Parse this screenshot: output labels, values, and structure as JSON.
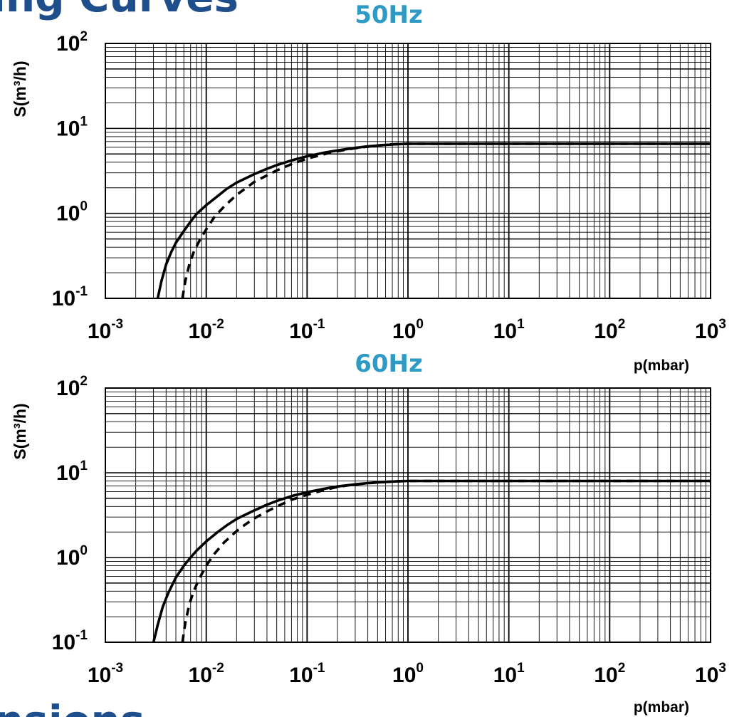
{
  "page": {
    "top_heading_fragment": "ing Curves",
    "bottom_heading_fragment": "nsions",
    "heading_color": "#1f4e8c",
    "freq_label_color": "#2e9bc6"
  },
  "chart_data": [
    {
      "type": "line",
      "title": "50Hz",
      "xlabel": "p(mbar)",
      "ylabel": "S(m³/h)",
      "xscale": "log",
      "yscale": "log",
      "xlim": [
        0.001,
        1000
      ],
      "ylim": [
        0.1,
        100
      ],
      "xticks": [
        {
          "b": "10",
          "e": "-3"
        },
        {
          "b": "10",
          "e": "-2"
        },
        {
          "b": "10",
          "e": "-1"
        },
        {
          "b": "10",
          "e": "0"
        },
        {
          "b": "10",
          "e": "1"
        },
        {
          "b": "10",
          "e": "2"
        },
        {
          "b": "10",
          "e": "3"
        }
      ],
      "yticks": [
        {
          "b": "10",
          "e": "-1"
        },
        {
          "b": "10",
          "e": "0"
        },
        {
          "b": "10",
          "e": "1"
        },
        {
          "b": "10",
          "e": "2"
        }
      ],
      "grid": true,
      "series": [
        {
          "style": "solid",
          "x": [
            0.0033,
            0.0036,
            0.004,
            0.0045,
            0.005,
            0.006,
            0.007,
            0.008,
            0.01,
            0.013,
            0.016,
            0.02,
            0.03,
            0.04,
            0.05,
            0.07,
            0.1,
            0.15,
            0.2,
            0.3,
            0.4,
            0.6,
            0.8,
            1,
            10,
            100,
            1000
          ],
          "y": [
            0.1,
            0.16,
            0.25,
            0.35,
            0.45,
            0.62,
            0.8,
            0.98,
            1.25,
            1.6,
            1.95,
            2.3,
            2.9,
            3.35,
            3.7,
            4.2,
            4.7,
            5.2,
            5.5,
            5.9,
            6.15,
            6.4,
            6.52,
            6.6,
            6.6,
            6.6,
            6.6
          ]
        },
        {
          "style": "dashed",
          "x": [
            0.0058,
            0.0062,
            0.0068,
            0.0075,
            0.0085,
            0.01,
            0.012,
            0.015,
            0.02,
            0.025,
            0.03,
            0.04,
            0.05,
            0.07,
            0.1,
            0.15,
            0.2,
            0.3,
            0.5,
            0.7,
            0.8,
            1,
            10,
            100,
            1000
          ],
          "y": [
            0.1,
            0.16,
            0.25,
            0.35,
            0.47,
            0.65,
            0.9,
            1.2,
            1.65,
            2.0,
            2.35,
            2.8,
            3.2,
            3.8,
            4.4,
            5.0,
            5.4,
            5.85,
            6.3,
            6.5,
            6.55,
            6.6,
            6.6,
            6.6,
            6.6
          ]
        }
      ]
    },
    {
      "type": "line",
      "title": "60Hz",
      "xlabel": "p(mbar)",
      "ylabel": "S(m³/h)",
      "xscale": "log",
      "yscale": "log",
      "xlim": [
        0.001,
        1000
      ],
      "ylim": [
        0.1,
        100
      ],
      "xticks": [
        {
          "b": "10",
          "e": "-3"
        },
        {
          "b": "10",
          "e": "-2"
        },
        {
          "b": "10",
          "e": "-1"
        },
        {
          "b": "10",
          "e": "0"
        },
        {
          "b": "10",
          "e": "1"
        },
        {
          "b": "10",
          "e": "2"
        },
        {
          "b": "10",
          "e": "3"
        }
      ],
      "yticks": [
        {
          "b": "10",
          "e": "-1"
        },
        {
          "b": "10",
          "e": "0"
        },
        {
          "b": "10",
          "e": "1"
        },
        {
          "b": "10",
          "e": "2"
        }
      ],
      "grid": true,
      "series": [
        {
          "style": "solid",
          "x": [
            0.003,
            0.0033,
            0.0037,
            0.0042,
            0.005,
            0.006,
            0.007,
            0.008,
            0.01,
            0.013,
            0.016,
            0.02,
            0.03,
            0.04,
            0.05,
            0.07,
            0.1,
            0.15,
            0.2,
            0.3,
            0.4,
            0.6,
            0.8,
            1,
            10,
            100,
            1000
          ],
          "y": [
            0.1,
            0.16,
            0.26,
            0.38,
            0.58,
            0.8,
            1.0,
            1.2,
            1.55,
            2.0,
            2.4,
            2.85,
            3.6,
            4.2,
            4.65,
            5.3,
            5.9,
            6.5,
            6.9,
            7.3,
            7.55,
            7.8,
            7.95,
            8.0,
            8.0,
            8.0,
            8.0
          ]
        },
        {
          "style": "dashed",
          "x": [
            0.0058,
            0.0062,
            0.0068,
            0.0075,
            0.0085,
            0.01,
            0.012,
            0.015,
            0.02,
            0.025,
            0.03,
            0.04,
            0.05,
            0.07,
            0.1,
            0.15,
            0.2,
            0.3,
            0.5,
            0.7,
            1,
            10,
            100,
            1000
          ],
          "y": [
            0.1,
            0.17,
            0.28,
            0.4,
            0.56,
            0.8,
            1.1,
            1.5,
            2.05,
            2.5,
            2.9,
            3.5,
            4.0,
            4.8,
            5.5,
            6.3,
            6.8,
            7.3,
            7.7,
            7.9,
            8.0,
            8.0,
            8.0,
            8.0
          ]
        }
      ]
    }
  ]
}
